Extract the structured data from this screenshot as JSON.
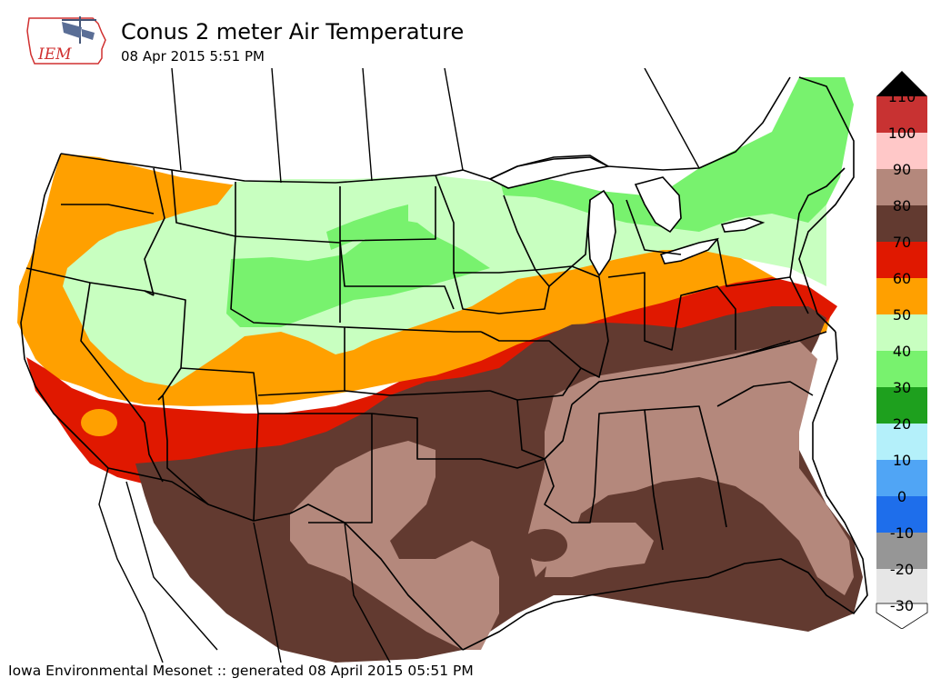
{
  "header": {
    "logo_text": "IEM",
    "title": "Conus 2 meter Air Temperature",
    "subtitle": "08 Apr 2015 5:51 PM"
  },
  "footer": {
    "text": "Iowa Environmental Mesonet :: generated 08 April 2015 05:51 PM"
  },
  "legend": {
    "levels": [
      {
        "label": "110",
        "color": "#c83232"
      },
      {
        "label": "100",
        "color": "#ffc8c8"
      },
      {
        "label": "90",
        "color": "#b4887c"
      },
      {
        "label": "80",
        "color": "#623a30"
      },
      {
        "label": "70",
        "color": "#e01800"
      },
      {
        "label": "60",
        "color": "#ffa000"
      },
      {
        "label": "50",
        "color": "#c8ffc0"
      },
      {
        "label": "40",
        "color": "#78f26e"
      },
      {
        "label": "30",
        "color": "#1ea01e"
      },
      {
        "label": "20",
        "color": "#b4f0fa"
      },
      {
        "label": "10",
        "color": "#50a5f5"
      },
      {
        "label": "0",
        "color": "#1e6eeb"
      },
      {
        "label": "-10",
        "color": "#969696"
      },
      {
        "label": "-20",
        "color": "#e6e6e6"
      },
      {
        "label": "-30",
        "color": ""
      }
    ],
    "top_cap_color": "#000000"
  },
  "map_colors": {
    "t40": "#78f26e",
    "t50": "#c8ffc0",
    "t60": "#ffa000",
    "t70": "#e01800",
    "t80": "#623a30",
    "t90": "#b4887c"
  }
}
